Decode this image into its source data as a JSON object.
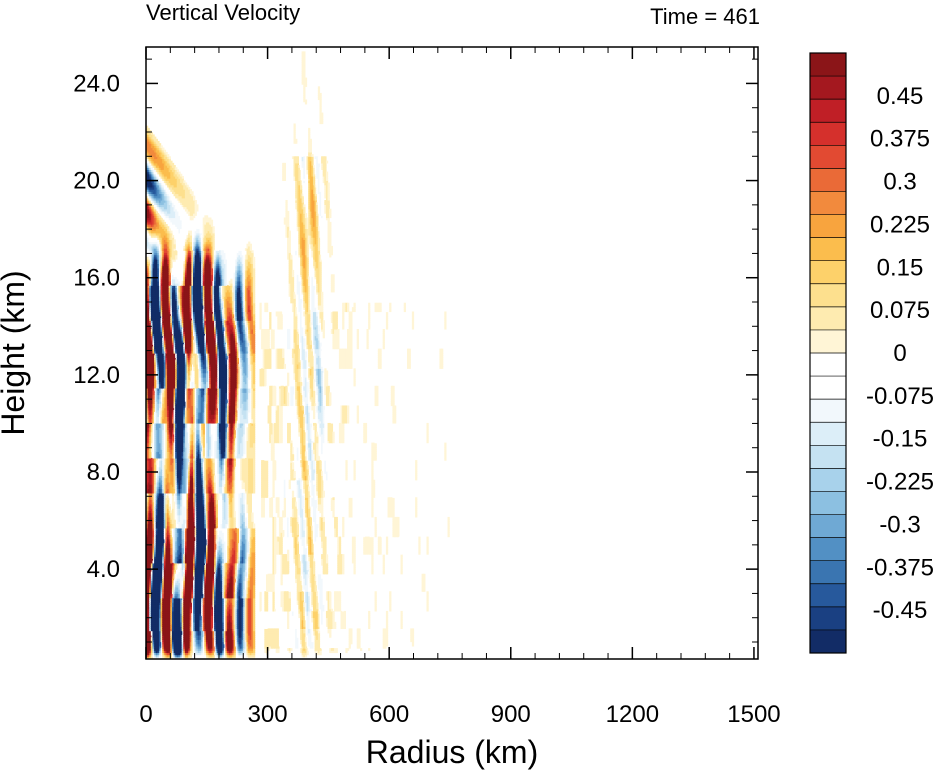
{
  "chart_data": {
    "type": "heatmap",
    "title": "Vertical Velocity",
    "time_label": "Time = 461",
    "xlabel": "Radius (km)",
    "ylabel": "Height (km)",
    "xlim": [
      0,
      1510
    ],
    "ylim": [
      0.3,
      25.5
    ],
    "x_major_ticks": [
      0,
      300,
      600,
      900,
      1200,
      1500
    ],
    "x_tick_labels": [
      "0",
      "300",
      "600",
      "900",
      "1200",
      "1500"
    ],
    "y_major_ticks": [
      4,
      8,
      12,
      16,
      20,
      24
    ],
    "y_tick_labels": [
      "4.0",
      "8.0",
      "12.0",
      "16.0",
      "20.0",
      "24.0"
    ],
    "colorbar": {
      "levels_low_to_high": [
        -0.525,
        0.525
      ],
      "level_step": 0.025,
      "labels": [
        "0.45",
        "0.375",
        "0.3",
        "0.225",
        "0.15",
        "0.075",
        "0",
        "-0.075",
        "-0.15",
        "-0.225",
        "-0.3",
        "-0.375",
        "-0.45"
      ],
      "label_values": [
        0.45,
        0.375,
        0.3,
        0.225,
        0.15,
        0.075,
        0,
        -0.075,
        -0.15,
        -0.225,
        -0.3,
        -0.375,
        -0.45
      ],
      "colors_high_to_low": [
        "#8b1518",
        "#a4181f",
        "#c01f26",
        "#d5302c",
        "#e24a32",
        "#ea6a37",
        "#f28a3d",
        "#f8a43e",
        "#fbbd4d",
        "#fdd16a",
        "#fde08e",
        "#feebb0",
        "#fff5d6",
        "#ffffff",
        "#ffffff",
        "#f2f8fc",
        "#dceef8",
        "#c5e2f2",
        "#a8d2eb",
        "#8cc0e1",
        "#6fa9d4",
        "#5290c4",
        "#3a75b1",
        "#27599c",
        "#1a4082",
        "#122c66"
      ]
    },
    "features": [
      {
        "kind": "updraft",
        "r_range": [
          0,
          20
        ],
        "z_range": [
          0.5,
          3.5
        ],
        "w": 0.5
      },
      {
        "kind": "downdraft",
        "r_range": [
          5,
          25
        ],
        "z_range": [
          4,
          15.5
        ],
        "w": -0.5
      },
      {
        "kind": "updraft",
        "r_range": [
          60,
          140
        ],
        "z_range": [
          9,
          16
        ],
        "w": 0.5
      },
      {
        "kind": "updraft",
        "r_range": [
          180,
          230
        ],
        "z_range": [
          1,
          17
        ],
        "w": 0.5
      },
      {
        "kind": "downdraft",
        "r_range": [
          165,
          205
        ],
        "z_range": [
          2,
          17
        ],
        "w": -0.5
      },
      {
        "kind": "updraft",
        "r_range": [
          0,
          20
        ],
        "z_range": [
          17.5,
          22
        ],
        "w": 0.4
      },
      {
        "kind": "updraft",
        "r_range": [
          390,
          410
        ],
        "z_range": [
          16.5,
          21
        ],
        "w": 0.2
      },
      {
        "kind": "downdraft",
        "r_range": [
          415,
          440
        ],
        "z_range": [
          10,
          13.5
        ],
        "w": -0.12
      },
      {
        "kind": "weak-noise",
        "r_range": [
          300,
          830
        ],
        "z_range": [
          1,
          15
        ],
        "w": 0.05
      }
    ]
  }
}
